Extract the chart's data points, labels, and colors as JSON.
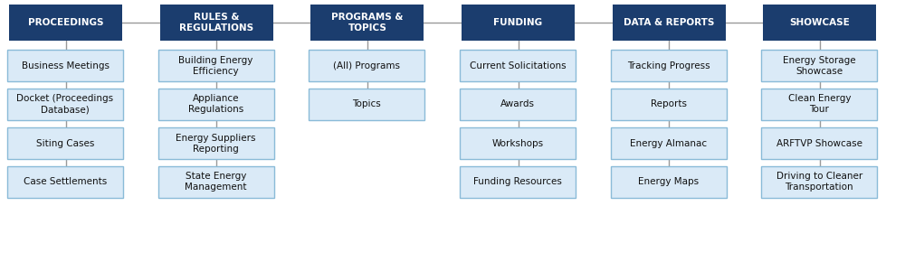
{
  "columns": [
    {
      "header": "PROCEEDINGS",
      "children": [
        "Business Meetings",
        "Docket (Proceedings\nDatabase)",
        "Siting Cases",
        "Case Settlements"
      ]
    },
    {
      "header": "RULES &\nREGULATIONS",
      "children": [
        "Building Energy\nEfficiency",
        "Appliance\nRegulations",
        "Energy Suppliers\nReporting",
        "State Energy\nManagement"
      ]
    },
    {
      "header": "PROGRAMS &\nTOPICS",
      "children": [
        "(All) Programs",
        "Topics"
      ]
    },
    {
      "header": "FUNDING",
      "children": [
        "Current Solicitations",
        "Awards",
        "Workshops",
        "Funding Resources"
      ]
    },
    {
      "header": "DATA & REPORTS",
      "children": [
        "Tracking Progress",
        "Reports",
        "Energy Almanac",
        "Energy Maps"
      ]
    },
    {
      "header": "SHOWCASE",
      "children": [
        "Energy Storage\nShowcase",
        "Clean Energy\nTour",
        "ARFTVP Showcase",
        "Driving to Cleaner\nTransportation"
      ]
    }
  ],
  "header_bg": "#1b3d6e",
  "header_text_color": "#ffffff",
  "child_bg": "#daeaf7",
  "child_border": "#8abbd8",
  "child_text_color": "#111111",
  "line_color": "#999999",
  "bg_color": "#ffffff",
  "header_fontsize": 7.5,
  "child_fontsize": 7.5,
  "fig_width": 10.0,
  "fig_height": 2.8
}
